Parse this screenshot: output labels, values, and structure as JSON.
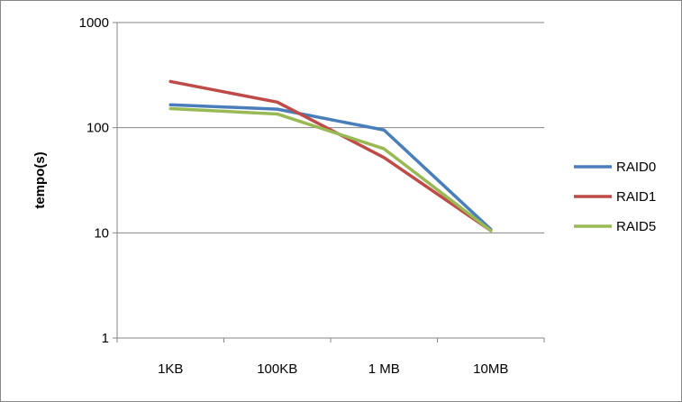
{
  "chart_data": {
    "type": "line",
    "ylabel": "tempo(s)",
    "yscale": "log",
    "ylim": [
      1,
      1000
    ],
    "yticks": [
      "1",
      "10",
      "100",
      "1000"
    ],
    "categories": [
      "1KB",
      "100KB",
      "1 MB",
      "10MB"
    ],
    "grid": "horizontal",
    "legend": "right",
    "series": [
      {
        "name": "RAID0",
        "color": "#4a7ebb",
        "values": [
          165,
          150,
          95,
          10.8
        ]
      },
      {
        "name": "RAID1",
        "color": "#be4b48",
        "values": [
          275,
          175,
          52,
          10.5
        ]
      },
      {
        "name": "RAID5",
        "color": "#98b954",
        "values": [
          152,
          135,
          63,
          10.5
        ]
      }
    ]
  }
}
